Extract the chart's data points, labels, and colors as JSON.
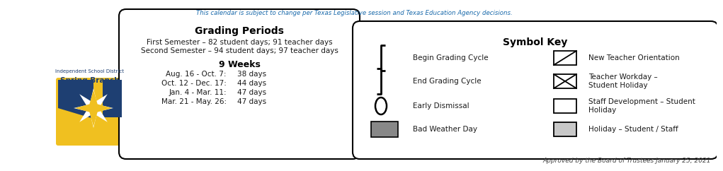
{
  "top_note": "This calendar is subject to change per Texas Legislative session and Texas Education Agency decisions.",
  "grading_title": "Grading Periods",
  "semester1": "First Semester – 82 student days; 91 teacher days",
  "semester2": "Second Semester – 94 student days; 97 teacher days",
  "nine_weeks_title": "9 Weeks",
  "nine_weeks_rows": [
    [
      "Aug. 16 - Oct. 7:    ",
      "38 days"
    ],
    [
      "Oct. 12 - Dec. 17:  ",
      "44 days"
    ],
    [
      "Jan. 4 - Mar. 11:    ",
      "47 days"
    ],
    [
      "Mar. 21 - May. 26:",
      "47 days"
    ]
  ],
  "symbol_key_title": "Symbol Key",
  "symbol_key_items_left": [
    "Begin Grading Cycle",
    "End Grading Cycle",
    "Early Dismissal",
    "Bad Weather Day"
  ],
  "symbol_key_items_right": [
    "New Teacher Orientation",
    "Teacher Workday –\nStudent Holiday",
    "Staff Development – Student\nHoliday",
    "Holiday – Student / Staff"
  ],
  "approved_text": "Approved by the Board of Trustees January 25, 2021",
  "text_color": "#1a1a1a",
  "note_color": "#1a6aab",
  "title_color": "#000000",
  "bg_color": "#ffffff",
  "logo_yellow": "#f0c020",
  "logo_blue": "#1e3f72",
  "dark_gray": "#888888",
  "light_gray": "#c8c8c8",
  "logo_text_color": "#1e3f72"
}
